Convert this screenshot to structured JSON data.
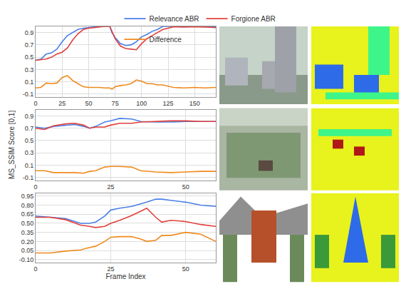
{
  "chart_data": [
    {
      "type": "line",
      "legend": "top",
      "grid": true,
      "x": [
        0,
        5,
        10,
        15,
        20,
        25,
        30,
        35,
        40,
        45,
        50,
        55,
        60,
        65,
        70,
        72,
        75,
        80,
        85,
        90,
        95,
        100,
        105,
        110,
        115,
        120,
        130,
        140,
        150,
        160,
        170
      ],
      "series": [
        {
          "name": "Relevance ABR",
          "color": "#4a7fe8",
          "values": [
            0.45,
            0.47,
            0.55,
            0.57,
            0.63,
            0.75,
            0.85,
            0.9,
            0.95,
            0.97,
            0.98,
            0.99,
            1.0,
            1.0,
            1.0,
            0.9,
            0.82,
            0.72,
            0.69,
            0.7,
            0.75,
            0.83,
            0.87,
            0.92,
            0.95,
            1.0,
            1.0,
            0.99,
            1.0,
            0.99,
            0.99
          ]
        },
        {
          "name": "Forgione ABR",
          "color": "#e0403a",
          "values": [
            0.45,
            0.46,
            0.47,
            0.5,
            0.55,
            0.58,
            0.65,
            0.78,
            0.88,
            0.95,
            0.97,
            0.98,
            0.99,
            1.0,
            1.0,
            0.92,
            0.8,
            0.68,
            0.64,
            0.63,
            0.62,
            0.72,
            0.8,
            0.85,
            0.9,
            0.95,
            0.99,
            0.99,
            0.99,
            0.99,
            0.98
          ]
        },
        {
          "name": "Difference",
          "color": "#f08a1c",
          "values": [
            0.0,
            0.01,
            0.08,
            0.07,
            0.08,
            0.17,
            0.2,
            0.12,
            0.07,
            0.02,
            0.01,
            0.01,
            0.01,
            0.0,
            0.0,
            -0.02,
            0.02,
            0.04,
            0.05,
            0.07,
            0.13,
            0.11,
            0.07,
            0.07,
            0.05,
            0.05,
            0.01,
            0.0,
            0.01,
            0.0,
            0.01
          ]
        }
      ],
      "xlim": [
        0,
        170
      ],
      "xticks": [
        0,
        25,
        50,
        75,
        100,
        125,
        150
      ],
      "ylim": [
        -0.15,
        1.0
      ],
      "yticks": [
        -0.1,
        0.1,
        0.3,
        0.5,
        0.7,
        0.9
      ]
    },
    {
      "type": "line",
      "grid": true,
      "y_label": "MS_SSIM Score [0,1]",
      "x": [
        0,
        3,
        6,
        10,
        13,
        16,
        18,
        20,
        23,
        25,
        28,
        32,
        35,
        40,
        45,
        50,
        55,
        60
      ],
      "series": [
        {
          "name": "Relevance ABR",
          "color": "#4a7fe8",
          "values": [
            0.72,
            0.7,
            0.73,
            0.75,
            0.76,
            0.73,
            0.7,
            0.73,
            0.8,
            0.82,
            0.86,
            0.85,
            0.81,
            0.8,
            0.8,
            0.81,
            0.81,
            0.81
          ]
        },
        {
          "name": "Forgione ABR",
          "color": "#e0403a",
          "values": [
            0.7,
            0.68,
            0.74,
            0.77,
            0.78,
            0.75,
            0.7,
            0.72,
            0.72,
            0.75,
            0.78,
            0.78,
            0.8,
            0.81,
            0.82,
            0.82,
            0.81,
            0.81
          ]
        },
        {
          "name": "Difference",
          "color": "#f08a1c",
          "values": [
            0.01,
            0.01,
            -0.02,
            -0.02,
            -0.02,
            -0.03,
            0.0,
            0.01,
            0.07,
            0.08,
            0.08,
            0.07,
            0.01,
            -0.01,
            -0.02,
            -0.01,
            0.0,
            0.0
          ]
        }
      ],
      "xlim": [
        0,
        60
      ],
      "xticks": [
        0,
        25,
        50
      ],
      "ylim": [
        -0.15,
        1.0
      ],
      "yticks": [
        -0.1,
        0.1,
        0.3,
        0.5,
        0.7,
        0.9
      ]
    },
    {
      "type": "line",
      "grid": true,
      "x_label": "Frame Index",
      "x": [
        0,
        5,
        10,
        15,
        18,
        20,
        23,
        25,
        28,
        32,
        35,
        37,
        40,
        42,
        45,
        50,
        55,
        60
      ],
      "series": [
        {
          "name": "Relevance ABR",
          "color": "#4a7fe8",
          "values": [
            0.62,
            0.6,
            0.58,
            0.5,
            0.5,
            0.52,
            0.62,
            0.72,
            0.75,
            0.78,
            0.82,
            0.85,
            0.9,
            0.9,
            0.88,
            0.85,
            0.8,
            0.78
          ]
        },
        {
          "name": "Forgione ABR",
          "color": "#e0403a",
          "values": [
            0.6,
            0.6,
            0.56,
            0.47,
            0.45,
            0.43,
            0.45,
            0.5,
            0.55,
            0.63,
            0.7,
            0.75,
            0.6,
            0.52,
            0.55,
            0.53,
            0.48,
            0.45
          ]
        },
        {
          "name": "Difference",
          "color": "#f08a1c",
          "values": [
            0.01,
            0.01,
            0.04,
            0.06,
            0.1,
            0.12,
            0.2,
            0.27,
            0.28,
            0.28,
            0.24,
            0.2,
            0.22,
            0.3,
            0.3,
            0.35,
            0.32,
            0.2
          ]
        }
      ],
      "xlim": [
        0,
        60
      ],
      "xticks": [
        0,
        25,
        50
      ],
      "ylim": [
        -0.15,
        1.0
      ],
      "yticks": [
        {
          "value": -0.1,
          "label": "-0.10"
        },
        0.05,
        {
          "value": 0.2,
          "label": "0.20"
        },
        0.35,
        {
          "value": 0.5,
          "label": "0.50"
        },
        0.65,
        {
          "value": 0.8,
          "label": "0.80"
        },
        0.95
      ]
    }
  ]
}
